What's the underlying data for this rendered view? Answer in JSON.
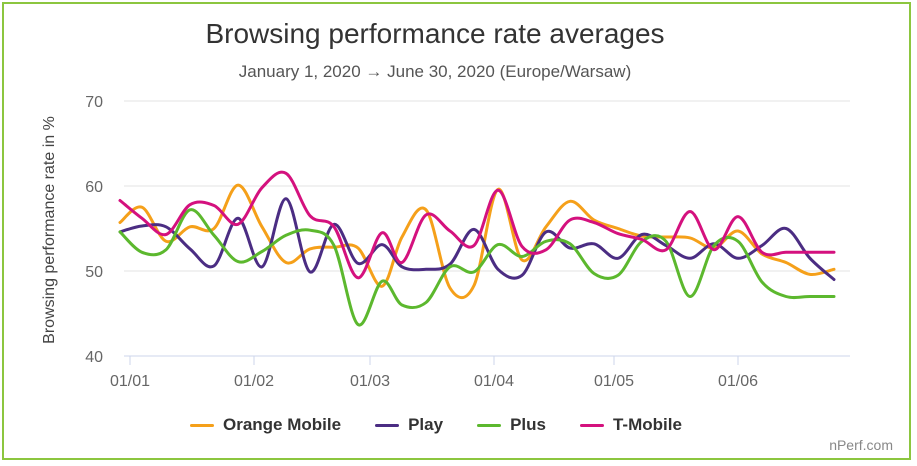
{
  "chart_data": {
    "type": "line",
    "title": "Browsing performance rate averages",
    "subtitle": "January 1, 2020 → June 30, 2020 (Europe/Warsaw)",
    "xlabel": "",
    "ylabel": "Browsing performance rate in %",
    "ylim": [
      40,
      70
    ],
    "yticks": [
      40,
      50,
      60,
      70
    ],
    "xlim": [
      -1.5,
      180
    ],
    "xticks": [
      {
        "day": 0,
        "label": "01/01"
      },
      {
        "day": 31,
        "label": "01/02"
      },
      {
        "day": 60,
        "label": "01/03"
      },
      {
        "day": 91,
        "label": "01/04"
      },
      {
        "day": 121,
        "label": "01/05"
      },
      {
        "day": 152,
        "label": "01/06"
      }
    ],
    "series": [
      {
        "name": "Orange Mobile",
        "color": "#f5a01a",
        "x": [
          -2.5,
          3,
          9,
          15,
          21,
          27,
          33,
          39,
          45,
          51,
          57,
          63,
          68,
          74,
          80,
          86,
          92,
          98,
          104,
          110,
          116,
          122,
          128,
          134,
          140,
          146,
          152,
          158,
          164,
          170,
          176
        ],
        "y": [
          55.7,
          57.5,
          53.5,
          55.2,
          55.0,
          60.1,
          55.2,
          51.0,
          52.6,
          52.8,
          52.7,
          48.2,
          54.0,
          57.2,
          48.0,
          48.3,
          59.6,
          51.3,
          55.2,
          58.2,
          56.0,
          55.0,
          54.1,
          54.0,
          53.9,
          52.7,
          54.7,
          52.0,
          51.0,
          49.6,
          50.2
        ]
      },
      {
        "name": "Play",
        "color": "#4b2d83",
        "x": [
          -2.5,
          3,
          9,
          15,
          21,
          27,
          33,
          39,
          45,
          51,
          57,
          63,
          68,
          74,
          80,
          86,
          92,
          98,
          104,
          110,
          116,
          122,
          128,
          134,
          140,
          146,
          152,
          158,
          164,
          170,
          176
        ],
        "y": [
          54.6,
          55.3,
          55.2,
          52.6,
          50.6,
          56.2,
          50.5,
          58.5,
          49.9,
          55.5,
          50.9,
          53.1,
          50.5,
          50.2,
          50.8,
          54.9,
          50.2,
          49.5,
          54.6,
          52.7,
          53.2,
          51.5,
          54.3,
          53.0,
          51.5,
          53.2,
          51.5,
          53.0,
          55.0,
          51.5,
          49.0
        ]
      },
      {
        "name": "Plus",
        "color": "#5cb82e",
        "x": [
          -2.5,
          3,
          9,
          15,
          21,
          27,
          33,
          39,
          45,
          51,
          57,
          63,
          68,
          74,
          80,
          86,
          92,
          98,
          104,
          110,
          116,
          122,
          128,
          134,
          140,
          146,
          152,
          158,
          164,
          170,
          176
        ],
        "y": [
          54.6,
          52.2,
          52.5,
          57.2,
          54.2,
          51.1,
          52.3,
          54.2,
          54.8,
          53.0,
          43.7,
          48.8,
          46.0,
          46.3,
          50.5,
          49.9,
          53.1,
          51.7,
          53.5,
          53.2,
          49.7,
          49.5,
          53.5,
          53.5,
          47.0,
          53.0,
          53.5,
          48.7,
          47.0,
          47.0,
          47.0
        ]
      },
      {
        "name": "T-Mobile",
        "color": "#d4117e",
        "x": [
          -2.5,
          3,
          9,
          15,
          21,
          27,
          33,
          39,
          45,
          51,
          57,
          63,
          68,
          74,
          80,
          86,
          92,
          98,
          104,
          110,
          116,
          122,
          128,
          134,
          140,
          146,
          152,
          158,
          164,
          170,
          176
        ],
        "y": [
          58.3,
          56.2,
          54.3,
          57.8,
          57.7,
          55.5,
          59.8,
          61.5,
          56.5,
          55.2,
          49.2,
          54.5,
          51.0,
          56.6,
          54.7,
          53.0,
          59.5,
          52.9,
          52.5,
          56.0,
          55.7,
          54.4,
          53.7,
          52.5,
          57.0,
          52.5,
          56.4,
          52.2,
          52.2,
          52.2,
          52.2
        ]
      }
    ],
    "legend_position": "bottom-center",
    "grid": "horizontal"
  },
  "credit": "nPerf.com"
}
